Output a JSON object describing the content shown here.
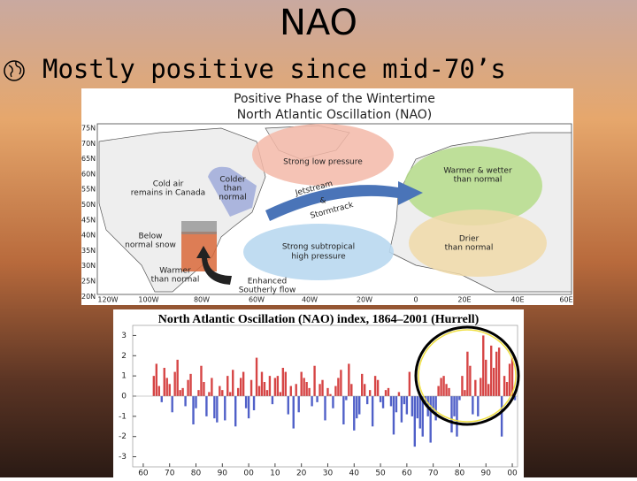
{
  "slide": {
    "title": "NAO",
    "bullet": "Mostly positive since mid-70’s"
  },
  "map": {
    "title": [
      "Positive Phase of the Wintertime",
      "North Atlantic Oscillation (NAO)"
    ],
    "lat_labels": [
      "75N",
      "70N",
      "65N",
      "60N",
      "55N",
      "50N",
      "45N",
      "40N",
      "35N",
      "30N",
      "25N",
      "20N"
    ],
    "lon_labels": [
      "120W",
      "100W",
      "80W",
      "60W",
      "40W",
      "20W",
      "0",
      "20E",
      "40E",
      "60E"
    ],
    "annotations": [
      [
        "Strong low pressure"
      ],
      [
        "Warmer & wetter",
        "than normal"
      ],
      [
        "Cold air",
        "remains in Canada"
      ],
      [
        "Colder",
        "than",
        "normal"
      ],
      [
        "Jetstream"
      ],
      [
        "&"
      ],
      [
        "Stormtrack"
      ],
      [
        "Below",
        "normal snow"
      ],
      [
        "Strong subtropical",
        "high pressure"
      ],
      [
        "Drier",
        "than normal"
      ],
      [
        "Warmer",
        "than normal"
      ],
      [
        "Enhanced",
        "Southerly flow"
      ]
    ]
  },
  "chart_data": {
    "type": "bar",
    "title": "North Atlantic Oscillation (NAO) index, 1864–2001 (Hurrell)",
    "x": [
      1864,
      1865,
      1866,
      1867,
      1868,
      1869,
      1870,
      1871,
      1872,
      1873,
      1874,
      1875,
      1876,
      1877,
      1878,
      1879,
      1880,
      1881,
      1882,
      1883,
      1884,
      1885,
      1886,
      1887,
      1888,
      1889,
      1890,
      1891,
      1892,
      1893,
      1894,
      1895,
      1896,
      1897,
      1898,
      1899,
      1900,
      1901,
      1902,
      1903,
      1904,
      1905,
      1906,
      1907,
      1908,
      1909,
      1910,
      1911,
      1912,
      1913,
      1914,
      1915,
      1916,
      1917,
      1918,
      1919,
      1920,
      1921,
      1922,
      1923,
      1924,
      1925,
      1926,
      1927,
      1928,
      1929,
      1930,
      1931,
      1932,
      1933,
      1934,
      1935,
      1936,
      1937,
      1938,
      1939,
      1940,
      1941,
      1942,
      1943,
      1944,
      1945,
      1946,
      1947,
      1948,
      1949,
      1950,
      1951,
      1952,
      1953,
      1954,
      1955,
      1956,
      1957,
      1958,
      1959,
      1960,
      1961,
      1962,
      1963,
      1964,
      1965,
      1966,
      1967,
      1968,
      1969,
      1970,
      1971,
      1972,
      1973,
      1974,
      1975,
      1976,
      1977,
      1978,
      1979,
      1980,
      1981,
      1982,
      1983,
      1984,
      1985,
      1986,
      1987,
      1988,
      1989,
      1990,
      1991,
      1992,
      1993,
      1994,
      1995,
      1996,
      1997,
      1998,
      1999,
      2000,
      2001
    ],
    "values": [
      1.0,
      1.6,
      0.5,
      -0.3,
      1.4,
      0.9,
      0.6,
      -0.8,
      1.2,
      1.8,
      0.3,
      0.4,
      -0.5,
      0.8,
      1.1,
      -1.4,
      -0.6,
      0.3,
      1.5,
      0.7,
      -1.0,
      0.2,
      0.9,
      -1.1,
      -1.3,
      0.5,
      0.3,
      -1.2,
      1.0,
      0.2,
      1.3,
      -1.5,
      0.4,
      0.9,
      1.2,
      -0.6,
      -1.1,
      0.8,
      -0.7,
      1.9,
      0.5,
      1.2,
      0.7,
      0.3,
      1.0,
      -0.4,
      0.9,
      1.0,
      0.2,
      1.4,
      1.2,
      -0.9,
      0.5,
      -1.6,
      0.6,
      -0.8,
      1.2,
      0.9,
      0.7,
      0.4,
      -0.5,
      1.5,
      -0.3,
      0.6,
      0.8,
      -1.2,
      0.4,
      0.1,
      -0.6,
      0.5,
      0.9,
      1.3,
      -1.4,
      -0.2,
      1.6,
      0.6,
      -1.7,
      -1.1,
      -0.9,
      1.1,
      0.6,
      -0.4,
      0.3,
      -1.5,
      1.0,
      0.8,
      -0.3,
      -0.6,
      0.3,
      0.4,
      -0.5,
      -1.9,
      -0.8,
      0.2,
      -1.3,
      -0.4,
      -0.9,
      1.2,
      -1.0,
      -2.5,
      -1.1,
      -1.6,
      -2.0,
      -0.4,
      -1.0,
      -2.3,
      -0.8,
      -1.2,
      0.5,
      0.9,
      1.0,
      0.6,
      0.4,
      -1.8,
      -1.0,
      -2.0,
      -0.2,
      1.0,
      0.3,
      2.2,
      1.5,
      -0.9,
      0.8,
      -1.0,
      0.9,
      3.0,
      1.8,
      0.6,
      2.5,
      1.4,
      2.2,
      2.4,
      -2.0,
      1.0,
      0.7,
      1.6,
      1.9,
      -0.2
    ],
    "positive_color": "#d64545",
    "negative_color": "#5060c8",
    "xlim": [
      1856,
      2002
    ],
    "xticks": [
      {
        "value": 1860,
        "label": "60"
      },
      {
        "value": 1870,
        "label": "70"
      },
      {
        "value": 1880,
        "label": "80"
      },
      {
        "value": 1890,
        "label": "90"
      },
      {
        "value": 1900,
        "label": "00"
      },
      {
        "value": 1910,
        "label": "10"
      },
      {
        "value": 1920,
        "label": "20"
      },
      {
        "value": 1930,
        "label": "30"
      },
      {
        "value": 1940,
        "label": "40"
      },
      {
        "value": 1950,
        "label": "50"
      },
      {
        "value": 1960,
        "label": "60"
      },
      {
        "value": 1970,
        "label": "70"
      },
      {
        "value": 1980,
        "label": "80"
      },
      {
        "value": 1990,
        "label": "90"
      },
      {
        "value": 2000,
        "label": "00"
      }
    ],
    "ylim": [
      -3.5,
      3.5
    ],
    "yticks": [
      -3,
      -2,
      -1,
      0,
      1,
      2,
      3
    ]
  }
}
